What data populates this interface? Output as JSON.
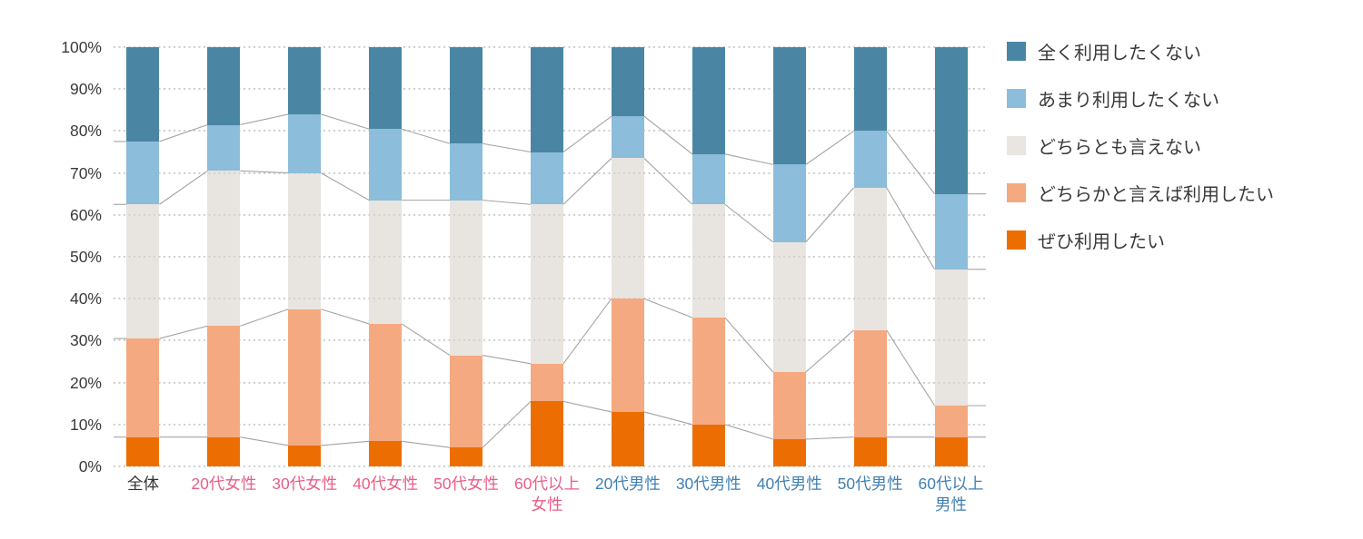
{
  "chart_data": {
    "type": "bar",
    "subtype": "100-percent-stacked-column",
    "title": "",
    "categories": [
      "全体",
      "20代女性",
      "30代女性",
      "40代女性",
      "50代女性",
      "60代以上\n女性",
      "20代男性",
      "30代男性",
      "40代男性",
      "50代男性",
      "60代以上\n男性"
    ],
    "category_label_colors": [
      "#333333",
      "#e95e87",
      "#e95e87",
      "#e95e87",
      "#e95e87",
      "#e95e87",
      "#4180b2",
      "#4180b2",
      "#4180b2",
      "#4180b2",
      "#4180b2"
    ],
    "series": [
      {
        "name": "ぜひ利用したい",
        "color": "#ec6e02",
        "values": [
          7,
          7,
          5,
          6,
          4.5,
          15.5,
          13,
          10,
          6.5,
          7,
          7
        ]
      },
      {
        "name": "どちらかと言えば利用したい",
        "color": "#f5a981",
        "values": [
          23.5,
          26.5,
          32.5,
          28,
          22,
          9,
          27,
          25.5,
          16,
          25.5,
          7.5
        ]
      },
      {
        "name": "どちらとも言えない",
        "color": "#e9e5e1",
        "values": [
          32,
          37,
          32.5,
          29.5,
          37,
          38,
          33.5,
          27,
          31,
          34,
          32.5
        ]
      },
      {
        "name": "あまり利用したくない",
        "color": "#8cbdda",
        "values": [
          15,
          11,
          14,
          17,
          13.5,
          12.5,
          10,
          12,
          18.5,
          13.5,
          18
        ]
      },
      {
        "name": "全く利用したくない",
        "color": "#4a86a4",
        "values": [
          22.5,
          18.5,
          16,
          19.5,
          23,
          25,
          16.5,
          25.5,
          28,
          20,
          35
        ]
      }
    ],
    "legend_order_top_to_bottom": [
      "全く利用したくない",
      "あまり利用したくない",
      "どちらとも言えない",
      "どちらかと言えば利用したい",
      "ぜひ利用したい"
    ],
    "legend_position": "right",
    "y_ticks_top_to_bottom": [
      "100%",
      "90%",
      "80%",
      "70%",
      "60%",
      "50%",
      "40%",
      "30%",
      "20%",
      "10%",
      "0%"
    ],
    "ylim": [
      0,
      100
    ],
    "grid": "dotted-horizontal-every-10pct",
    "connector_lines": true
  },
  "styles": {
    "grid_color": "#c9c9c9",
    "connector_color": "#a3a3a3",
    "axis_text_color": "#3a3a3a",
    "legend_text_color": "#3a3a3a",
    "neutral_segment_render": "rgba(218,212,205,0.62)",
    "background": "#ffffff"
  }
}
